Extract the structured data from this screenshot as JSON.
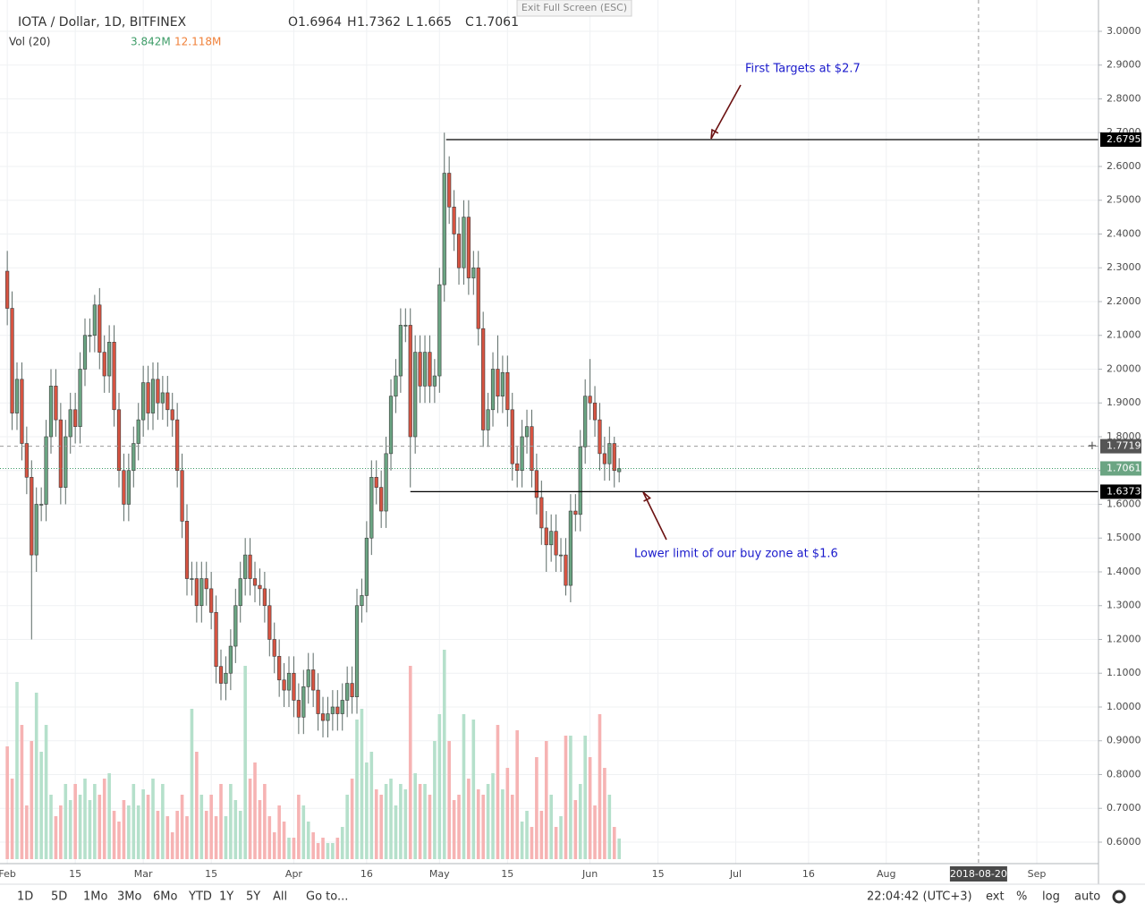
{
  "chart_data": {
    "type": "candlestick",
    "title": "IOTA / Dollar, 1D, BITFINEX",
    "ohlc_labels": [
      "O",
      "H",
      "L",
      "C"
    ],
    "volume_title": "Vol (20)",
    "volume_value_label": "3.842M",
    "volume_ma_label": "12.118M",
    "candles": [
      [
        2.29,
        2.35,
        2.13,
        2.18
      ],
      [
        2.18,
        2.23,
        1.82,
        1.87
      ],
      [
        1.87,
        2.02,
        1.82,
        1.97
      ],
      [
        1.97,
        2.02,
        1.73,
        1.78
      ],
      [
        1.78,
        1.83,
        1.63,
        1.68
      ],
      [
        1.68,
        1.73,
        1.2,
        1.45
      ],
      [
        1.45,
        1.65,
        1.4,
        1.6
      ],
      [
        1.6,
        1.65,
        1.55,
        1.6
      ],
      [
        1.6,
        1.85,
        1.55,
        1.8
      ],
      [
        1.8,
        2.0,
        1.75,
        1.95
      ],
      [
        1.95,
        2.0,
        1.8,
        1.85
      ],
      [
        1.85,
        1.9,
        1.6,
        1.65
      ],
      [
        1.65,
        1.85,
        1.6,
        1.8
      ],
      [
        1.8,
        1.93,
        1.75,
        1.88
      ],
      [
        1.88,
        1.93,
        1.78,
        1.83
      ],
      [
        1.83,
        2.05,
        1.78,
        2.0
      ],
      [
        2.0,
        2.15,
        1.95,
        2.1
      ],
      [
        2.1,
        2.15,
        2.05,
        2.1
      ],
      [
        2.1,
        2.22,
        2.05,
        2.19
      ],
      [
        2.19,
        2.24,
        2.0,
        2.05
      ],
      [
        2.05,
        2.1,
        1.93,
        1.98
      ],
      [
        1.98,
        2.13,
        1.93,
        2.08
      ],
      [
        2.08,
        2.13,
        1.83,
        1.88
      ],
      [
        1.88,
        1.93,
        1.65,
        1.7
      ],
      [
        1.7,
        1.75,
        1.55,
        1.6
      ],
      [
        1.6,
        1.75,
        1.55,
        1.7
      ],
      [
        1.7,
        1.83,
        1.65,
        1.78
      ],
      [
        1.78,
        1.9,
        1.73,
        1.85
      ],
      [
        1.85,
        2.01,
        1.8,
        1.96
      ],
      [
        1.96,
        2.01,
        1.82,
        1.87
      ],
      [
        1.87,
        2.02,
        1.82,
        1.97
      ],
      [
        1.97,
        2.02,
        1.85,
        1.9
      ],
      [
        1.9,
        1.98,
        1.85,
        1.93
      ],
      [
        1.93,
        1.98,
        1.83,
        1.88
      ],
      [
        1.88,
        1.93,
        1.8,
        1.85
      ],
      [
        1.85,
        1.9,
        1.65,
        1.7
      ],
      [
        1.7,
        1.75,
        1.5,
        1.55
      ],
      [
        1.55,
        1.6,
        1.33,
        1.38
      ],
      [
        1.38,
        1.43,
        1.33,
        1.38
      ],
      [
        1.38,
        1.43,
        1.25,
        1.3
      ],
      [
        1.3,
        1.43,
        1.25,
        1.38
      ],
      [
        1.38,
        1.43,
        1.3,
        1.35
      ],
      [
        1.35,
        1.4,
        1.23,
        1.28
      ],
      [
        1.28,
        1.33,
        1.07,
        1.12
      ],
      [
        1.12,
        1.17,
        1.02,
        1.07
      ],
      [
        1.07,
        1.15,
        1.02,
        1.1
      ],
      [
        1.1,
        1.23,
        1.05,
        1.18
      ],
      [
        1.18,
        1.35,
        1.13,
        1.3
      ],
      [
        1.3,
        1.43,
        1.25,
        1.38
      ],
      [
        1.38,
        1.5,
        1.33,
        1.45
      ],
      [
        1.45,
        1.5,
        1.33,
        1.38
      ],
      [
        1.38,
        1.43,
        1.31,
        1.36
      ],
      [
        1.36,
        1.41,
        1.3,
        1.35
      ],
      [
        1.35,
        1.4,
        1.25,
        1.3
      ],
      [
        1.3,
        1.35,
        1.15,
        1.2
      ],
      [
        1.2,
        1.25,
        1.1,
        1.15
      ],
      [
        1.15,
        1.2,
        1.03,
        1.08
      ],
      [
        1.08,
        1.13,
        1.0,
        1.05
      ],
      [
        1.05,
        1.15,
        1.0,
        1.1
      ],
      [
        1.1,
        1.15,
        0.97,
        1.02
      ],
      [
        1.02,
        1.07,
        0.92,
        0.97
      ],
      [
        0.97,
        1.11,
        0.92,
        1.06
      ],
      [
        1.06,
        1.16,
        1.01,
        1.11
      ],
      [
        1.11,
        1.16,
        1.0,
        1.05
      ],
      [
        1.05,
        1.1,
        0.93,
        0.98
      ],
      [
        0.98,
        1.03,
        0.91,
        0.96
      ],
      [
        0.96,
        1.03,
        0.91,
        0.98
      ],
      [
        0.98,
        1.05,
        0.93,
        1.0
      ],
      [
        1.0,
        1.05,
        0.93,
        0.98
      ],
      [
        0.98,
        1.07,
        0.93,
        1.02
      ],
      [
        1.02,
        1.12,
        0.97,
        1.07
      ],
      [
        1.07,
        1.12,
        0.98,
        1.03
      ],
      [
        1.03,
        1.35,
        0.98,
        1.3
      ],
      [
        1.3,
        1.38,
        1.25,
        1.33
      ],
      [
        1.33,
        1.55,
        1.28,
        1.5
      ],
      [
        1.5,
        1.73,
        1.45,
        1.68
      ],
      [
        1.68,
        1.73,
        1.6,
        1.65
      ],
      [
        1.65,
        1.7,
        1.53,
        1.58
      ],
      [
        1.58,
        1.8,
        1.53,
        1.75
      ],
      [
        1.75,
        1.97,
        1.7,
        1.92
      ],
      [
        1.92,
        2.03,
        1.87,
        1.98
      ],
      [
        1.98,
        2.18,
        1.93,
        2.13
      ],
      [
        2.13,
        2.18,
        2.08,
        2.13
      ],
      [
        2.13,
        2.18,
        1.65,
        1.8
      ],
      [
        1.8,
        2.1,
        1.75,
        2.05
      ],
      [
        2.05,
        2.1,
        1.9,
        1.95
      ],
      [
        1.95,
        2.1,
        1.9,
        2.05
      ],
      [
        2.05,
        2.1,
        1.9,
        1.95
      ],
      [
        1.95,
        2.03,
        1.9,
        1.98
      ],
      [
        1.98,
        2.3,
        1.93,
        2.25
      ],
      [
        2.25,
        2.7,
        2.2,
        2.58
      ],
      [
        2.58,
        2.63,
        2.43,
        2.48
      ],
      [
        2.48,
        2.53,
        2.35,
        2.4
      ],
      [
        2.4,
        2.45,
        2.25,
        2.3
      ],
      [
        2.3,
        2.5,
        2.25,
        2.45
      ],
      [
        2.45,
        2.5,
        2.22,
        2.27
      ],
      [
        2.27,
        2.35,
        2.22,
        2.3
      ],
      [
        2.3,
        2.35,
        2.07,
        2.12
      ],
      [
        2.12,
        2.17,
        1.77,
        1.82
      ],
      [
        1.82,
        1.93,
        1.77,
        1.88
      ],
      [
        1.88,
        2.05,
        1.83,
        2.0
      ],
      [
        2.0,
        2.1,
        1.87,
        1.92
      ],
      [
        1.92,
        2.04,
        1.87,
        1.99
      ],
      [
        1.99,
        2.04,
        1.83,
        1.88
      ],
      [
        1.88,
        1.93,
        1.67,
        1.72
      ],
      [
        1.72,
        1.77,
        1.65,
        1.7
      ],
      [
        1.7,
        1.85,
        1.65,
        1.8
      ],
      [
        1.8,
        1.88,
        1.75,
        1.83
      ],
      [
        1.83,
        1.88,
        1.65,
        1.7
      ],
      [
        1.7,
        1.75,
        1.57,
        1.62
      ],
      [
        1.62,
        1.67,
        1.48,
        1.53
      ],
      [
        1.53,
        1.58,
        1.4,
        1.48
      ],
      [
        1.48,
        1.57,
        1.43,
        1.52
      ],
      [
        1.52,
        1.57,
        1.4,
        1.45
      ],
      [
        1.45,
        1.5,
        1.4,
        1.45
      ],
      [
        1.45,
        1.5,
        1.33,
        1.36
      ],
      [
        1.36,
        1.63,
        1.31,
        1.58
      ],
      [
        1.58,
        1.63,
        1.52,
        1.57
      ],
      [
        1.57,
        1.82,
        1.52,
        1.77
      ],
      [
        1.77,
        1.97,
        1.72,
        1.92
      ],
      [
        1.92,
        2.03,
        1.85,
        1.9
      ],
      [
        1.9,
        1.95,
        1.8,
        1.85
      ],
      [
        1.85,
        1.9,
        1.7,
        1.75
      ],
      [
        1.75,
        1.8,
        1.67,
        1.72
      ],
      [
        1.72,
        1.83,
        1.67,
        1.78
      ],
      [
        1.78,
        1.8,
        1.65,
        1.7
      ],
      [
        1.6964,
        1.7362,
        1.665,
        1.7061
      ]
    ],
    "volumes": [
      21,
      15,
      33,
      25,
      10,
      22,
      31,
      20,
      25,
      12,
      8,
      10,
      14,
      11,
      14,
      12,
      15,
      11,
      14,
      12,
      15,
      16,
      9,
      7,
      11,
      10,
      14,
      10,
      13,
      12,
      15,
      9,
      14,
      8,
      5,
      9,
      12,
      8,
      28,
      20,
      12,
      9,
      12,
      8,
      14,
      8,
      14,
      11,
      9,
      36,
      15,
      18,
      11,
      14,
      8,
      5,
      10,
      7,
      4,
      4,
      12,
      10,
      7,
      5,
      3,
      4,
      3,
      3,
      4,
      6,
      12,
      15,
      26,
      28,
      18,
      20,
      13,
      12,
      14,
      15,
      10,
      14,
      13,
      36,
      16,
      14,
      14,
      12,
      22,
      27,
      39,
      22,
      11,
      12,
      27,
      15,
      26,
      13,
      12,
      14,
      16,
      25,
      13,
      17,
      12,
      24,
      7,
      9,
      6,
      19,
      9,
      22,
      12,
      6,
      8,
      23,
      23,
      11,
      14,
      23,
      19,
      10,
      27,
      17,
      12,
      6,
      3.842
    ],
    "up_color": "#6ba583",
    "down_color": "#d75442",
    "ylim": [
      0.5364,
      3.0927
    ],
    "yticks": [
      {
        "value": 0.6,
        "label": "0.6000"
      },
      {
        "value": 0.7,
        "label": "0.7000"
      },
      {
        "value": 0.8,
        "label": "0.8000"
      },
      {
        "value": 0.9,
        "label": "0.9000"
      },
      {
        "value": 1.0,
        "label": "1.0000"
      },
      {
        "value": 1.1,
        "label": "1.1000"
      },
      {
        "value": 1.2,
        "label": "1.2000"
      },
      {
        "value": 1.3,
        "label": "1.3000"
      },
      {
        "value": 1.4,
        "label": "1.4000"
      },
      {
        "value": 1.5,
        "label": "1.5000"
      },
      {
        "value": 1.6,
        "label": "1.6000"
      },
      {
        "value": 1.7,
        "label": "1.7000"
      },
      {
        "value": 1.8,
        "label": "1.8000"
      },
      {
        "value": 1.9,
        "label": "1.9000"
      },
      {
        "value": 2.0,
        "label": "2.0000"
      },
      {
        "value": 2.1,
        "label": "2.1000"
      },
      {
        "value": 2.2,
        "label": "2.2000"
      },
      {
        "value": 2.3,
        "label": "2.3000"
      },
      {
        "value": 2.4,
        "label": "2.4000"
      },
      {
        "value": 2.5,
        "label": "2.5000"
      },
      {
        "value": 2.6,
        "label": "2.6000"
      },
      {
        "value": 2.7,
        "label": "2.7000"
      },
      {
        "value": 2.8,
        "label": "2.8000"
      },
      {
        "value": 2.9,
        "label": "2.9000"
      },
      {
        "value": 3.0,
        "label": "3.0000"
      }
    ],
    "xlim": [
      -1.5,
      224.7
    ],
    "xticks": [
      {
        "value": 0,
        "label": "Feb"
      },
      {
        "value": 14,
        "label": "15"
      },
      {
        "value": 28,
        "label": "Mar"
      },
      {
        "value": 42,
        "label": "15"
      },
      {
        "value": 59,
        "label": "Apr"
      },
      {
        "value": 74,
        "label": "16"
      },
      {
        "value": 89,
        "label": "May"
      },
      {
        "value": 103,
        "label": "15"
      },
      {
        "value": 120,
        "label": "Jun"
      },
      {
        "value": 134,
        "label": "15"
      },
      {
        "value": 150,
        "label": "Jul"
      },
      {
        "value": 165,
        "label": "16"
      },
      {
        "value": 181,
        "label": "Aug"
      },
      {
        "value": 212,
        "label": "Sep"
      }
    ],
    "crosshair_x": {
      "value": 200,
      "label": "2018-08-20"
    },
    "crosshair_y": 1.7719,
    "target_level": 2.6795,
    "support_level": 1.6373,
    "annotations": [
      "First Targets at $2.7",
      "Lower limit of our buy zone at $1.6"
    ],
    "grid": true
  },
  "toolbar": {
    "exit": "Exit Full Screen (ESC)",
    "ranges": [
      "1D",
      "5D",
      "1Mo",
      "3Mo",
      "6Mo",
      "YTD",
      "1Y",
      "5Y",
      "All"
    ],
    "goto": "Go to...",
    "clock": "22:04:42 (UTC+3)",
    "options": [
      "ext",
      "%",
      "log",
      "auto"
    ]
  }
}
